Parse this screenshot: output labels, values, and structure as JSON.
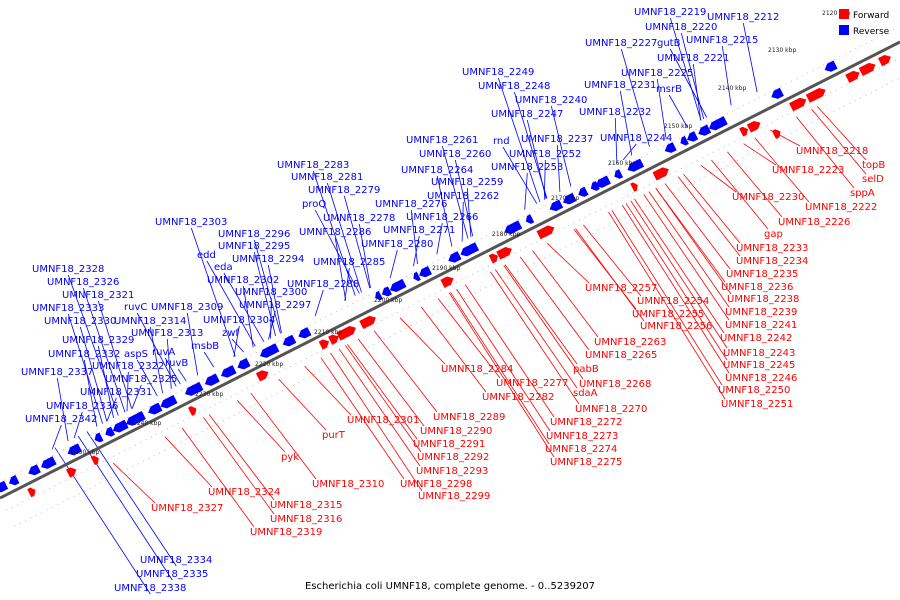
{
  "caption": "Escherichia coli UMNF18, complete genome. - 0..5239207",
  "legend": [
    {
      "label": "Forward",
      "color": "#ff0000"
    },
    {
      "label": "Reverse",
      "color": "#0000ff"
    }
  ],
  "colors": {
    "forward": "#ff0000",
    "reverse": "#0000ff",
    "backbone": "#555555"
  },
  "ticks": [
    "2120 kbp",
    "2130 kbp",
    "2140 kbp",
    "2150 kbp",
    "2160 kbp",
    "2170 kbp",
    "2180 kbp",
    "2190 kbp",
    "2200 kbp",
    "2210 kbp",
    "2220 kbp",
    "2230 kbp",
    "2240 kbp",
    "2250 kbp"
  ],
  "reverse_labels": [
    "UMNF18_2219",
    "UMNF18_2220",
    "UMNF18_2212",
    "gutB",
    "UMNF18_2227",
    "UMNF18_2215",
    "UMNF18_2221",
    "UMNF18_2225",
    "UMNF18_2249",
    "UMNF18_2248",
    "UMNF18_2231",
    "msrB",
    "UMNF18_2240",
    "UMNF18_2247",
    "UMNF18_2232",
    "UMNF18_2237",
    "UMNF18_2261",
    "rnd",
    "UMNF18_2244",
    "UMNF18_2260",
    "UMNF18_2252",
    "UMNF18_2283",
    "UMNF18_2264",
    "UMNF18_2253",
    "UMNF18_2281",
    "UMNF18_2259",
    "UMNF18_2279",
    "proQ",
    "UMNF18_2276",
    "UMNF18_2262",
    "UMNF18_2278",
    "UMNF18_2303",
    "UMNF18_2266",
    "UMNF18_2286",
    "UMNF18_2271",
    "UMNF18_2296",
    "UMNF18_2280",
    "UMNF18_2295",
    "edd",
    "UMNF18_2294",
    "UMNF18_2285",
    "eda",
    "UMNF18_2328",
    "UMNF18_2302",
    "UMNF18_2326",
    "UMNF18_2288",
    "UMNF18_2300",
    "UMNF18_2321",
    "UMNF18_2333",
    "ruvC",
    "UMNF18_2309",
    "UMNF18_2297",
    "UMNF18_2330",
    "UMNF18_2314",
    "UMNF18_2304",
    "UMNF18_2313",
    "zwf",
    "UMNF18_2329",
    "ruvA",
    "msbB",
    "UMNF18_2332",
    "aspS",
    "ruvB",
    "UMNF18_2337",
    "UMNF18_2322",
    "UMNF18_2325",
    "UMNF18_2331",
    "UMNF18_2336",
    "UMNF18_2342",
    "UMNF18_2334",
    "UMNF18_2335",
    "UMNF18_2338"
  ],
  "forward_labels": [
    "UMNF18_2218",
    "topB",
    "UMNF18_2223",
    "selD",
    "sppA",
    "UMNF18_2222",
    "UMNF18_2230",
    "UMNF18_2226",
    "gap",
    "UMNF18_2233",
    "UMNF18_2234",
    "UMNF18_2235",
    "UMNF18_2236",
    "UMNF18_2238",
    "UMNF18_2257",
    "UMNF18_2254",
    "UMNF18_2239",
    "UMNF18_2255",
    "UMNF18_2241",
    "UMNF18_2256",
    "UMNF18_2242",
    "UMNF18_2263",
    "UMNF18_2243",
    "UMNF18_2265",
    "UMNF18_2245",
    "pabB",
    "UMNF18_2246",
    "UMNF18_2284",
    "UMNF18_2268",
    "UMNF18_2250",
    "UMNF18_2277",
    "sdaA",
    "UMNF18_2251",
    "UMNF18_2282",
    "UMNF18_2270",
    "UMNF18_2289",
    "UMNF18_2301",
    "UMNF18_2272",
    "UMNF18_2290",
    "purT",
    "UMNF18_2273",
    "UMNF18_2291",
    "UMNF18_2274",
    "UMNF18_2292",
    "pyk",
    "UMNF18_2275",
    "UMNF18_2293",
    "UMNF18_2310",
    "UMNF18_2298",
    "UMNF18_2324",
    "UMNF18_2299",
    "UMNF18_2315",
    "UMNF18_2327",
    "UMNF18_2316",
    "UMNF18_2319"
  ]
}
